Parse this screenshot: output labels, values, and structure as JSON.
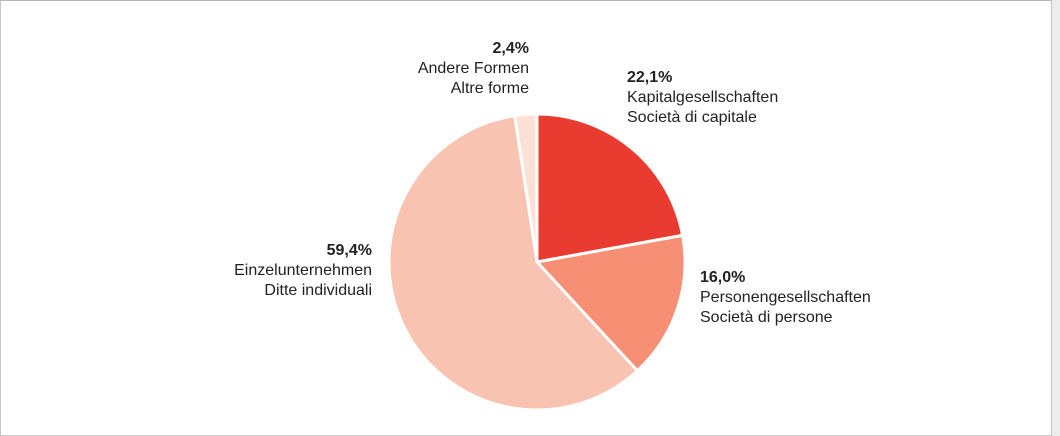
{
  "chart_data": {
    "type": "pie",
    "title": "",
    "slices": [
      {
        "pct_label": "22,1%",
        "value": 22.1,
        "label_de": "Kapitalgesellschaften",
        "label_it": "Società di capitale",
        "color": "#ea3b30"
      },
      {
        "pct_label": "16,0%",
        "value": 16.0,
        "label_de": "Personengesellschaften",
        "label_it": "Società di persone",
        "color": "#f68f74"
      },
      {
        "pct_label": "59,4%",
        "value": 59.4,
        "label_de": "Einzelunternehmen",
        "label_it": "Ditte individuali",
        "color": "#f9c3b1"
      },
      {
        "pct_label": "2,4%",
        "value": 2.4,
        "label_de": "Andere Formen",
        "label_it": "Altre forme",
        "color": "#fde0d6"
      }
    ]
  }
}
